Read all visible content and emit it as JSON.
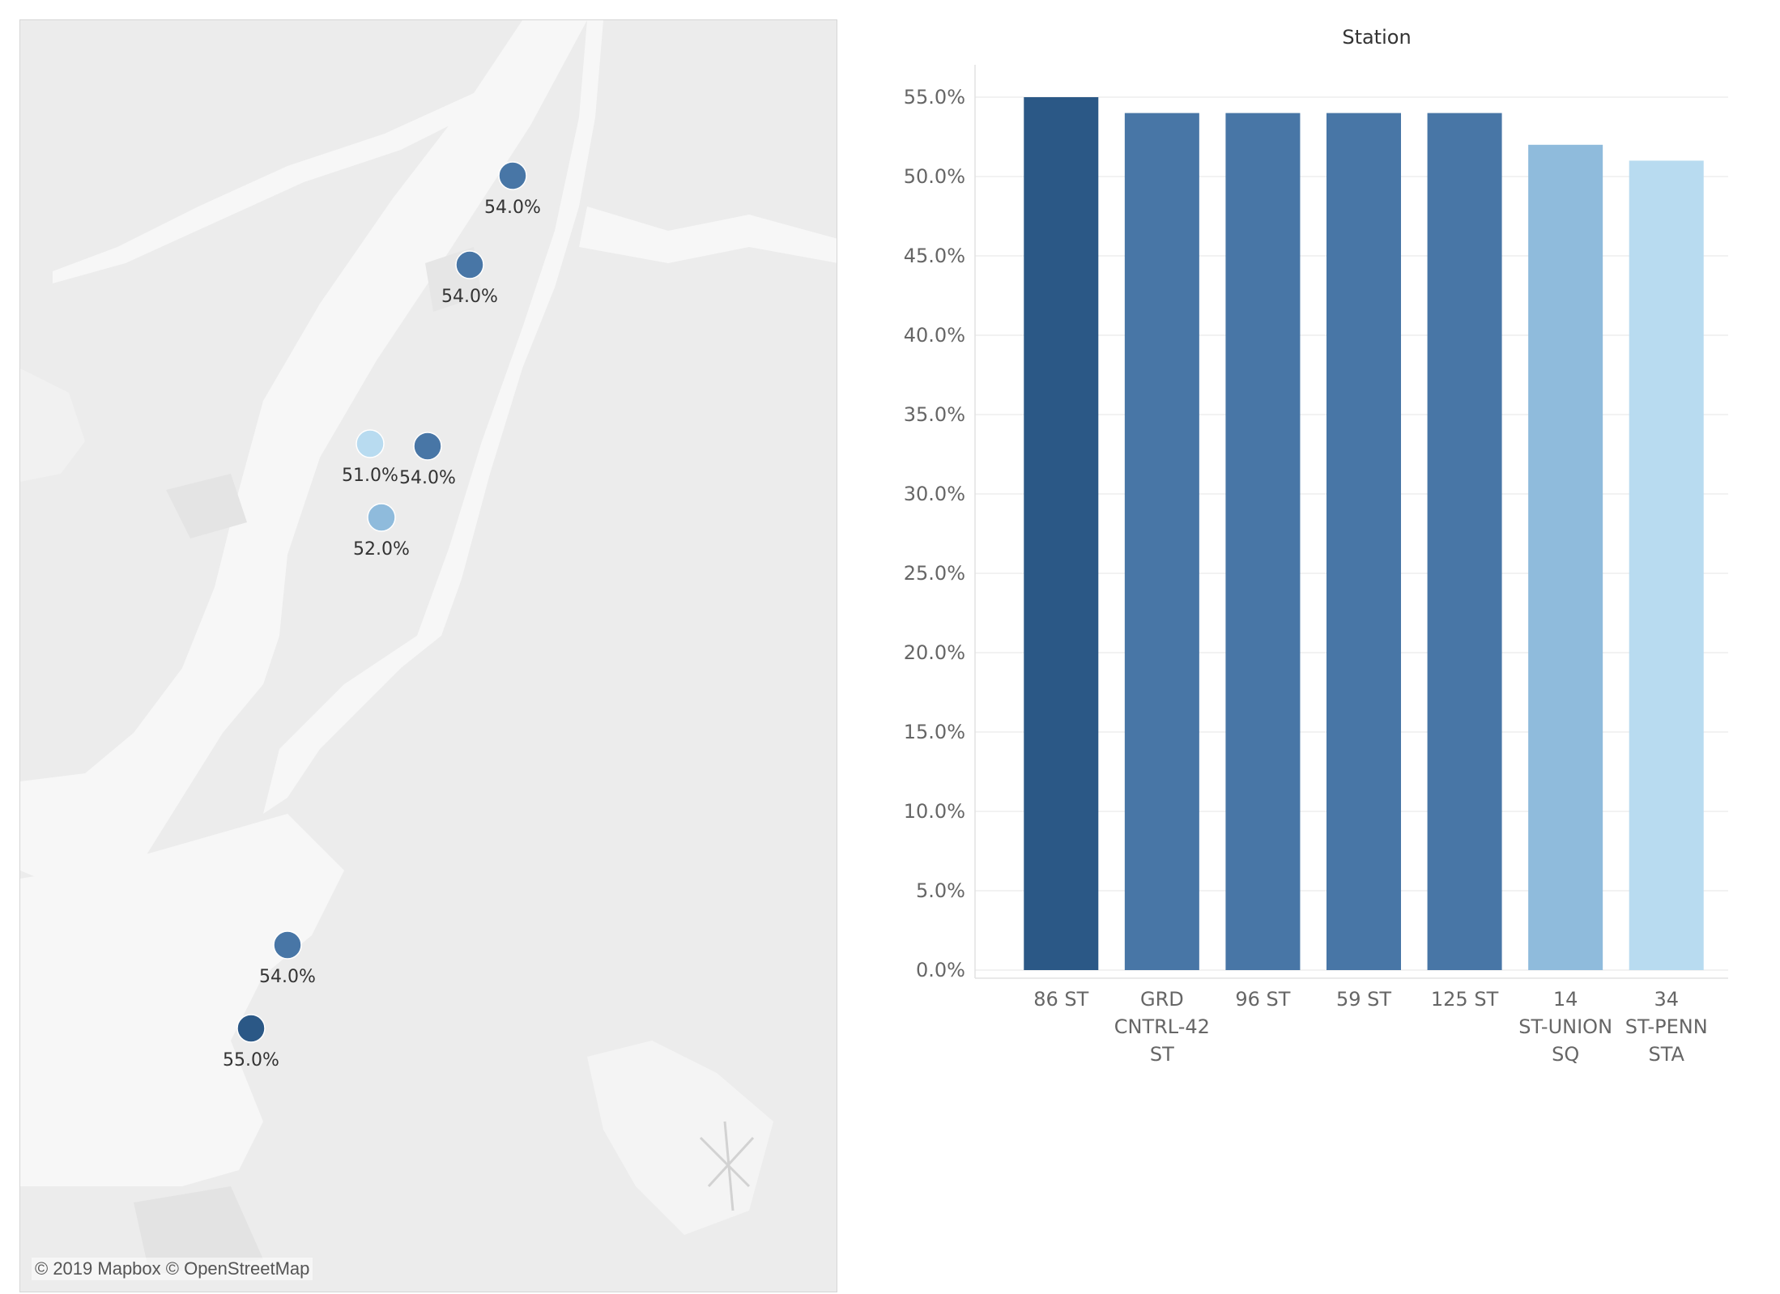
{
  "map": {
    "attribution": "© 2019 Mapbox © OpenStreetMap",
    "marker_colors": {
      "55.0%": "#2b5886",
      "54.0%": "#4876a6",
      "52.0%": "#8fbbdc",
      "51.0%": "#b8dbf0"
    },
    "markers": [
      {
        "station": "125 ST",
        "value": 0.54,
        "label": "54.0%"
      },
      {
        "station": "96 ST",
        "value": 0.54,
        "label": "54.0%"
      },
      {
        "station": "34 ST-PENN STA",
        "value": 0.51,
        "label": "51.0%"
      },
      {
        "station": "GRD CNTRL-42 ST",
        "value": 0.54,
        "label": "54.0%"
      },
      {
        "station": "14 ST-UNION SQ",
        "value": 0.52,
        "label": "52.0%"
      },
      {
        "station": "59 ST",
        "value": 0.54,
        "label": "54.0%"
      },
      {
        "station": "86 ST",
        "value": 0.55,
        "label": "55.0%"
      }
    ]
  },
  "chart_data": {
    "type": "bar",
    "title": "Station",
    "categories": [
      [
        "86 ST"
      ],
      [
        "GRD",
        "CNTRL-42",
        "ST"
      ],
      [
        "96 ST"
      ],
      [
        "59 ST"
      ],
      [
        "125 ST"
      ],
      [
        "14",
        "ST-UNION",
        "SQ"
      ],
      [
        "34",
        "ST-PENN",
        "STA"
      ]
    ],
    "values": [
      0.55,
      0.54,
      0.54,
      0.54,
      0.54,
      0.52,
      0.51
    ],
    "colors": [
      "#2b5886",
      "#4876a6",
      "#4876a6",
      "#4876a6",
      "#4876a6",
      "#8fbbdc",
      "#b8dbf0"
    ],
    "ylim": [
      0,
      0.55
    ],
    "yticks": [
      "0.0%",
      "5.0%",
      "10.0%",
      "15.0%",
      "20.0%",
      "25.0%",
      "30.0%",
      "35.0%",
      "40.0%",
      "45.0%",
      "50.0%",
      "55.0%"
    ],
    "grid": true
  }
}
